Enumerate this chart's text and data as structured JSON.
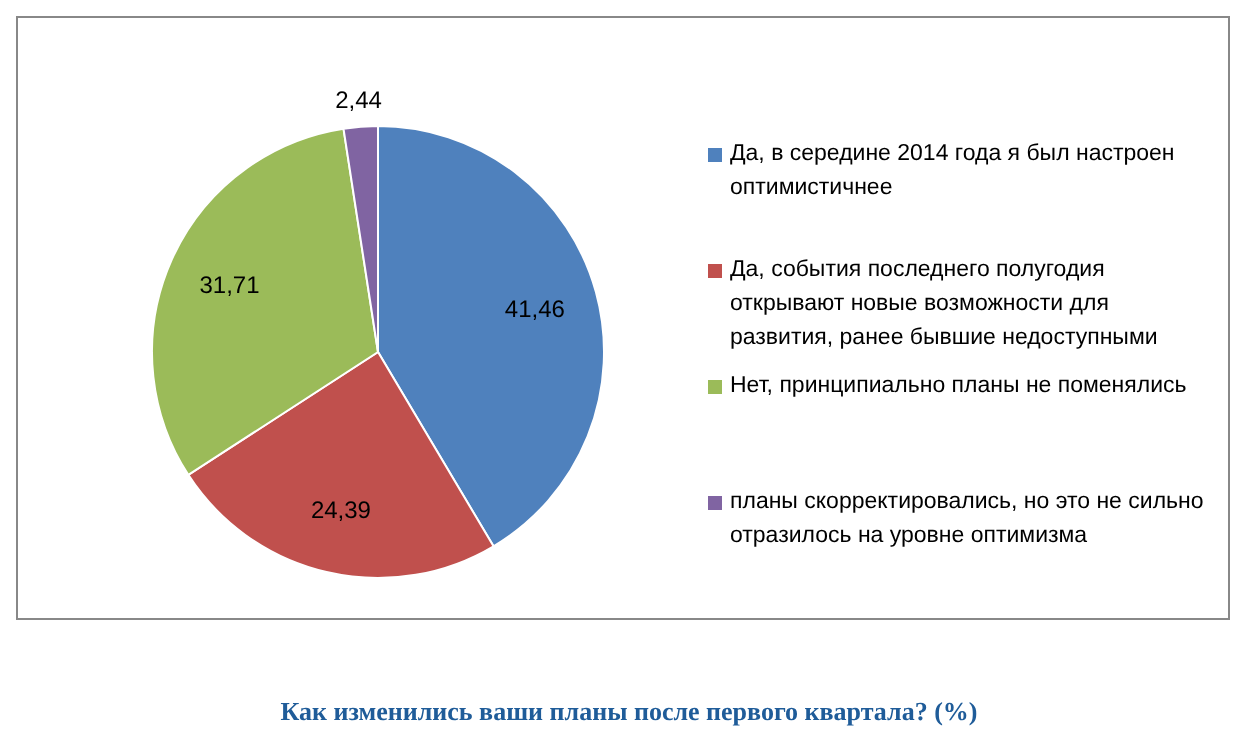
{
  "chart_data": {
    "type": "pie",
    "title": "Как изменились  ваши планы после первого квартала? (%)",
    "categories": [
      "Да, в середине  2014 года я был настроен оптимистичнее",
      "Да, события последнего полугодия открывают новые возможности для развития, ранее бывшие  недоступными",
      "Нет, принципиально планы не поменялись",
      "планы скорректировались, но это не сильно отразилось на уровне оптимизма"
    ],
    "values": [
      41.46,
      24.39,
      31.71,
      2.44
    ],
    "value_labels": [
      "41,46",
      "24,39",
      "31,71",
      "2,44"
    ],
    "colors": [
      "#4f81bd",
      "#c0504d",
      "#9bbb59",
      "#8064a2"
    ],
    "legend": "right"
  }
}
